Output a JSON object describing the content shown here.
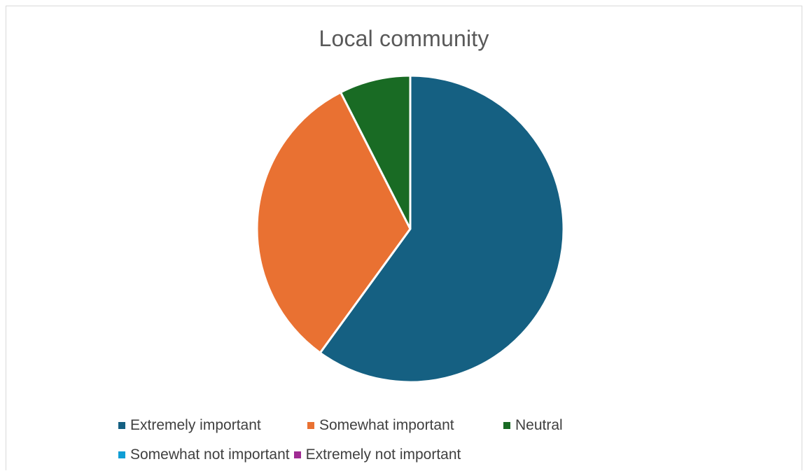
{
  "chart_data": {
    "type": "pie",
    "title": "Local community",
    "categories": [
      "Extremely important",
      "Somewhat important",
      "Neutral",
      "Somewhat not important",
      "Extremely not important"
    ],
    "values": [
      60,
      32.5,
      7.5,
      0,
      0
    ],
    "colors": [
      "#156082",
      "#E97132",
      "#196B24",
      "#0F9ED5",
      "#A02B93"
    ],
    "legend_position": "bottom"
  }
}
